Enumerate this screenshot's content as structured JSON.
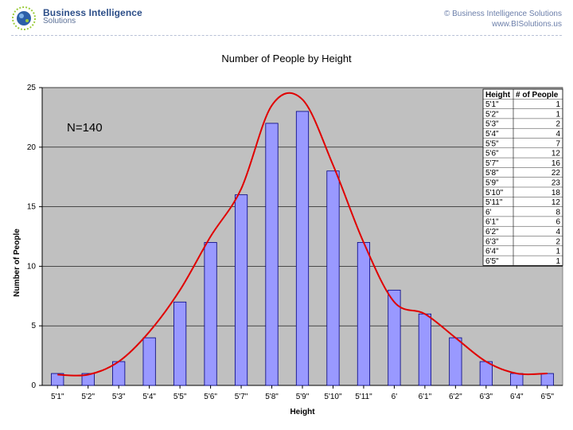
{
  "header": {
    "brand_name": "Business Intelligence",
    "brand_sub": "Solutions",
    "copyright_line1": "© Business Intelligence Solutions",
    "copyright_line2": "www.BISolutions.us"
  },
  "chart_data": {
    "type": "bar",
    "title": "Number of People by Height",
    "xlabel": "Height",
    "ylabel": "Number of People",
    "annotation": "N=140",
    "ylim": [
      0,
      25
    ],
    "yticks": [
      0,
      5,
      10,
      15,
      20,
      25
    ],
    "grid": true,
    "categories": [
      "5'1\"",
      "5'2\"",
      "5'3\"",
      "5'4\"",
      "5'5\"",
      "5'6\"",
      "5'7\"",
      "5'8\"",
      "5'9\"",
      "5'10\"",
      "5'11\"",
      "6'",
      "6'1\"",
      "6'2\"",
      "6'3\"",
      "6'4\"",
      "6'5\""
    ],
    "values": [
      1,
      1,
      2,
      4,
      7,
      12,
      16,
      22,
      23,
      18,
      12,
      8,
      6,
      4,
      2,
      1,
      1
    ],
    "curve": {
      "type": "line",
      "values": [
        0.9,
        0.9,
        2.0,
        4.5,
        8.0,
        12.5,
        16.5,
        23.5,
        24.0,
        18.5,
        12.0,
        7.0,
        6.0,
        4.0,
        2.0,
        1.0,
        1.0
      ]
    },
    "table": {
      "headers": [
        "Height",
        "# of People"
      ],
      "rows": [
        [
          "5'1\"",
          "1"
        ],
        [
          "5'2\"",
          "1"
        ],
        [
          "5'3\"",
          "2"
        ],
        [
          "5'4\"",
          "4"
        ],
        [
          "5'5\"",
          "7"
        ],
        [
          "5'6\"",
          "12"
        ],
        [
          "5'7\"",
          "16"
        ],
        [
          "5'8\"",
          "22"
        ],
        [
          "5'9\"",
          "23"
        ],
        [
          "5'10\"",
          "18"
        ],
        [
          "5'11\"",
          "12"
        ],
        [
          "6'",
          "8"
        ],
        [
          "6'1\"",
          "6"
        ],
        [
          "6'2\"",
          "4"
        ],
        [
          "6'3\"",
          "2"
        ],
        [
          "6'4\"",
          "1"
        ],
        [
          "6'5\"",
          "1"
        ]
      ]
    },
    "colors": {
      "plot_bg": "#c0c0c0",
      "bar_fill": "#9999ff",
      "bar_fill_light": "#9999ff",
      "bar_stroke": "#000080",
      "curve": "#e00000"
    }
  }
}
